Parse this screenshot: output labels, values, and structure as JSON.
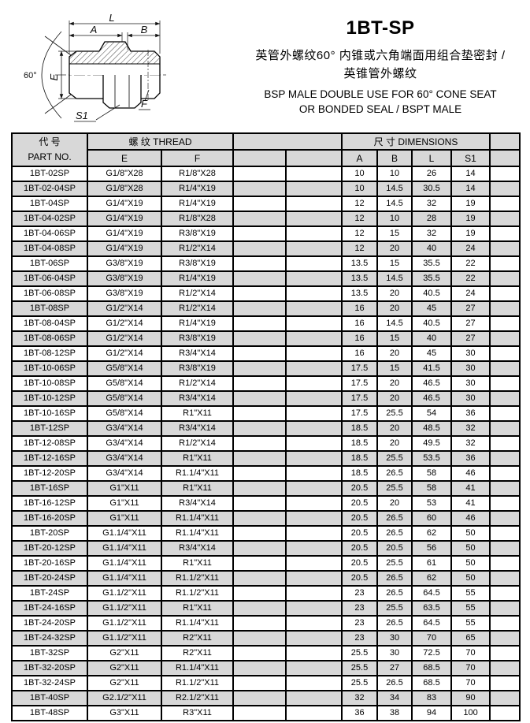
{
  "header": {
    "title": "1BT-SP",
    "subtitle_cn_1": "英管外螺纹60°  内锥或六角端面用组合垫密封 /",
    "subtitle_cn_2": "英锥管外螺纹",
    "subtitle_en_1": "BSP MALE DOUBLE USE FOR 60° CONE SEAT",
    "subtitle_en_2": "OR BONDED SEAL / BSPT MALE"
  },
  "drawing": {
    "labels": {
      "l": "L",
      "a": "A",
      "b": "B",
      "e": "E",
      "f": "F",
      "s1": "S1",
      "angle": "60°"
    }
  },
  "colors": {
    "row_alt": "#d8d8d8",
    "border": "#000000"
  },
  "table": {
    "header": {
      "part_no_cn": "代 号",
      "part_no_en": "PART NO.",
      "thread": "螺 纹  THREAD",
      "dimensions": "尺 寸  DIMENSIONS",
      "e": "E",
      "f": "F",
      "a": "A",
      "b": "B",
      "l": "L",
      "s1": "S1"
    },
    "rows": [
      [
        "1BT-02SP",
        "G1/8\"X28",
        "R1/8\"X28",
        "10",
        "10",
        "26",
        "14"
      ],
      [
        "1BT-02-04SP",
        "G1/8\"X28",
        "R1/4\"X19",
        "10",
        "14.5",
        "30.5",
        "14"
      ],
      [
        "1BT-04SP",
        "G1/4\"X19",
        "R1/4\"X19",
        "12",
        "14.5",
        "32",
        "19"
      ],
      [
        "1BT-04-02SP",
        "G1/4\"X19",
        "R1/8\"X28",
        "12",
        "10",
        "28",
        "19"
      ],
      [
        "1BT-04-06SP",
        "G1/4\"X19",
        "R3/8\"X19",
        "12",
        "15",
        "32",
        "19"
      ],
      [
        "1BT-04-08SP",
        "G1/4\"X19",
        "R1/2\"X14",
        "12",
        "20",
        "40",
        "24"
      ],
      [
        "1BT-06SP",
        "G3/8\"X19",
        "R3/8\"X19",
        "13.5",
        "15",
        "35.5",
        "22"
      ],
      [
        "1BT-06-04SP",
        "G3/8\"X19",
        "R1/4\"X19",
        "13.5",
        "14.5",
        "35.5",
        "22"
      ],
      [
        "1BT-06-08SP",
        "G3/8\"X19",
        "R1/2\"X14",
        "13.5",
        "20",
        "40.5",
        "24"
      ],
      [
        "1BT-08SP",
        "G1/2\"X14",
        "R1/2\"X14",
        "16",
        "20",
        "45",
        "27"
      ],
      [
        "1BT-08-04SP",
        "G1/2\"X14",
        "R1/4\"X19",
        "16",
        "14.5",
        "40.5",
        "27"
      ],
      [
        "1BT-08-06SP",
        "G1/2\"X14",
        "R3/8\"X19",
        "16",
        "15",
        "40",
        "27"
      ],
      [
        "1BT-08-12SP",
        "G1/2\"X14",
        "R3/4\"X14",
        "16",
        "20",
        "45",
        "30"
      ],
      [
        "1BT-10-06SP",
        "G5/8\"X14",
        "R3/8\"X19",
        "17.5",
        "15",
        "41.5",
        "30"
      ],
      [
        "1BT-10-08SP",
        "G5/8\"X14",
        "R1/2\"X14",
        "17.5",
        "20",
        "46.5",
        "30"
      ],
      [
        "1BT-10-12SP",
        "G5/8\"X14",
        "R3/4\"X14",
        "17.5",
        "20",
        "46.5",
        "30"
      ],
      [
        "1BT-10-16SP",
        "G5/8\"X14",
        "R1\"X11",
        "17.5",
        "25.5",
        "54",
        "36"
      ],
      [
        "1BT-12SP",
        "G3/4\"X14",
        "R3/4\"X14",
        "18.5",
        "20",
        "48.5",
        "32"
      ],
      [
        "1BT-12-08SP",
        "G3/4\"X14",
        "R1/2\"X14",
        "18.5",
        "20",
        "49.5",
        "32"
      ],
      [
        "1BT-12-16SP",
        "G3/4\"X14",
        "R1\"X11",
        "18.5",
        "25.5",
        "53.5",
        "36"
      ],
      [
        "1BT-12-20SP",
        "G3/4\"X14",
        "R1.1/4\"X11",
        "18.5",
        "26.5",
        "58",
        "46"
      ],
      [
        "1BT-16SP",
        "G1\"X11",
        "R1\"X11",
        "20.5",
        "25.5",
        "58",
        "41"
      ],
      [
        "1BT-16-12SP",
        "G1\"X11",
        "R3/4\"X14",
        "20.5",
        "20",
        "53",
        "41"
      ],
      [
        "1BT-16-20SP",
        "G1\"X11",
        "R1.1/4\"X11",
        "20.5",
        "26.5",
        "60",
        "46"
      ],
      [
        "1BT-20SP",
        "G1.1/4\"X11",
        "R1.1/4\"X11",
        "20.5",
        "26.5",
        "62",
        "50"
      ],
      [
        "1BT-20-12SP",
        "G1.1/4\"X11",
        "R3/4\"X14",
        "20.5",
        "20.5",
        "56",
        "50"
      ],
      [
        "1BT-20-16SP",
        "G1.1/4\"X11",
        "R1\"X11",
        "20.5",
        "25.5",
        "61",
        "50"
      ],
      [
        "1BT-20-24SP",
        "G1.1/4\"X11",
        "R1.1/2\"X11",
        "20.5",
        "26.5",
        "62",
        "50"
      ],
      [
        "1BT-24SP",
        "G1.1/2\"X11",
        "R1.1/2\"X11",
        "23",
        "26.5",
        "64.5",
        "55"
      ],
      [
        "1BT-24-16SP",
        "G1.1/2\"X11",
        "R1\"X11",
        "23",
        "25.5",
        "63.5",
        "55"
      ],
      [
        "1BT-24-20SP",
        "G1.1/2\"X11",
        "R1.1/4\"X11",
        "23",
        "26.5",
        "64.5",
        "55"
      ],
      [
        "1BT-24-32SP",
        "G1.1/2\"X11",
        "R2\"X11",
        "23",
        "30",
        "70",
        "65"
      ],
      [
        "1BT-32SP",
        "G2\"X11",
        "R2\"X11",
        "25.5",
        "30",
        "72.5",
        "70"
      ],
      [
        "1BT-32-20SP",
        "G2\"X11",
        "R1.1/4\"X11",
        "25.5",
        "27",
        "68.5",
        "70"
      ],
      [
        "1BT-32-24SP",
        "G2\"X11",
        "R1.1/2\"X11",
        "25.5",
        "26.5",
        "68.5",
        "70"
      ],
      [
        "1BT-40SP",
        "G2.1/2\"X11",
        "R2.1/2\"X11",
        "32",
        "34",
        "83",
        "90"
      ],
      [
        "1BT-48SP",
        "G3\"X11",
        "R3\"X11",
        "36",
        "38",
        "94",
        "100"
      ]
    ]
  }
}
